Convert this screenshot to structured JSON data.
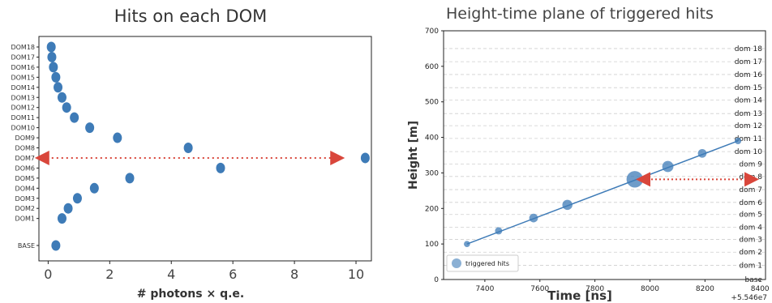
{
  "chart_data": [
    {
      "type": "scatter",
      "title": "Hits on each DOM",
      "xlabel": "# photons × q.e.",
      "ylabel": "",
      "xlim": [
        -0.3,
        10.5
      ],
      "xticks": [
        "0",
        "2",
        "4",
        "6",
        "8",
        "10"
      ],
      "xtick_values": [
        0,
        2,
        4,
        6,
        8,
        10
      ],
      "categories": [
        "BASE",
        "DOM1",
        "DOM2",
        "DOM3",
        "DOM4",
        "DOM5",
        "DOM6",
        "DOM7",
        "DOM8",
        "DOM9",
        "DOM10",
        "DOM11",
        "DOM12",
        "DOM13",
        "DOM14",
        "DOM15",
        "DOM16",
        "DOM17",
        "DOM18"
      ],
      "values": [
        0.25,
        0.45,
        0.65,
        0.95,
        1.5,
        2.65,
        5.6,
        10.3,
        4.55,
        2.25,
        1.35,
        0.85,
        0.6,
        0.45,
        0.32,
        0.25,
        0.17,
        0.12,
        0.1
      ],
      "point_color": "#3e7bb7",
      "annotation_arrow": {
        "from": -0.2,
        "to": 9.4,
        "category": "DOM7",
        "color": "#d9463b",
        "style": "dotted double-headed"
      }
    },
    {
      "type": "scatter",
      "title": "Height-time plane of triggered hits",
      "xlabel": "Time [ns]",
      "ylabel": "Height [m]",
      "xlim": [
        7250,
        8420
      ],
      "ylim": [
        0,
        700
      ],
      "xticks": [
        "7400",
        "7600",
        "7800",
        "8000",
        "8200",
        "8400"
      ],
      "xtick_values": [
        7400,
        7600,
        7800,
        8000,
        8200,
        8400
      ],
      "offset_label": "+5.546e7",
      "yticks": [
        "0",
        "100",
        "200",
        "300",
        "400",
        "500",
        "600",
        "700"
      ],
      "ytick_values": [
        0,
        100,
        200,
        300,
        400,
        500,
        600,
        700
      ],
      "grid": "horizontal dashed",
      "dom_levels": [
        {
          "label": "base",
          "y": 0
        },
        {
          "label": "dom 1",
          "y": 40
        },
        {
          "label": "dom 2",
          "y": 77
        },
        {
          "label": "dom 3",
          "y": 113
        },
        {
          "label": "dom 4",
          "y": 147
        },
        {
          "label": "dom 5",
          "y": 183
        },
        {
          "label": "dom 6",
          "y": 217
        },
        {
          "label": "dom 7",
          "y": 253
        },
        {
          "label": "dom 8",
          "y": 290
        },
        {
          "label": "dom 9",
          "y": 325
        },
        {
          "label": "dom 10",
          "y": 360
        },
        {
          "label": "dom 11",
          "y": 397
        },
        {
          "label": "dom 12",
          "y": 433
        },
        {
          "label": "dom 13",
          "y": 467
        },
        {
          "label": "dom 14",
          "y": 505
        },
        {
          "label": "dom 15",
          "y": 540
        },
        {
          "label": "dom 16",
          "y": 577
        },
        {
          "label": "dom 17",
          "y": 613
        },
        {
          "label": "dom 18",
          "y": 650
        }
      ],
      "series": [
        {
          "name": "triggered hits",
          "x": [
            7335,
            7450,
            7577,
            7700,
            7945,
            8065,
            8190,
            8320
          ],
          "y": [
            100,
            137,
            173,
            210,
            282,
            318,
            355,
            390
          ],
          "size": [
            0.6,
            0.9,
            1.3,
            1.7,
            3.5,
            2.0,
            1.3,
            0.7
          ]
        }
      ],
      "fit_line": {
        "x": [
          7335,
          8320
        ],
        "y": [
          100,
          390
        ],
        "color": "#3e7bb7"
      },
      "point_color": "#3e7bb7",
      "legend": {
        "label": "triggered hits",
        "position": "bottom-left"
      },
      "annotation_arrow": {
        "x_from": 7975,
        "x_to": 8370,
        "y": 282,
        "color": "#d9463b",
        "style": "dotted double-headed"
      }
    }
  ]
}
